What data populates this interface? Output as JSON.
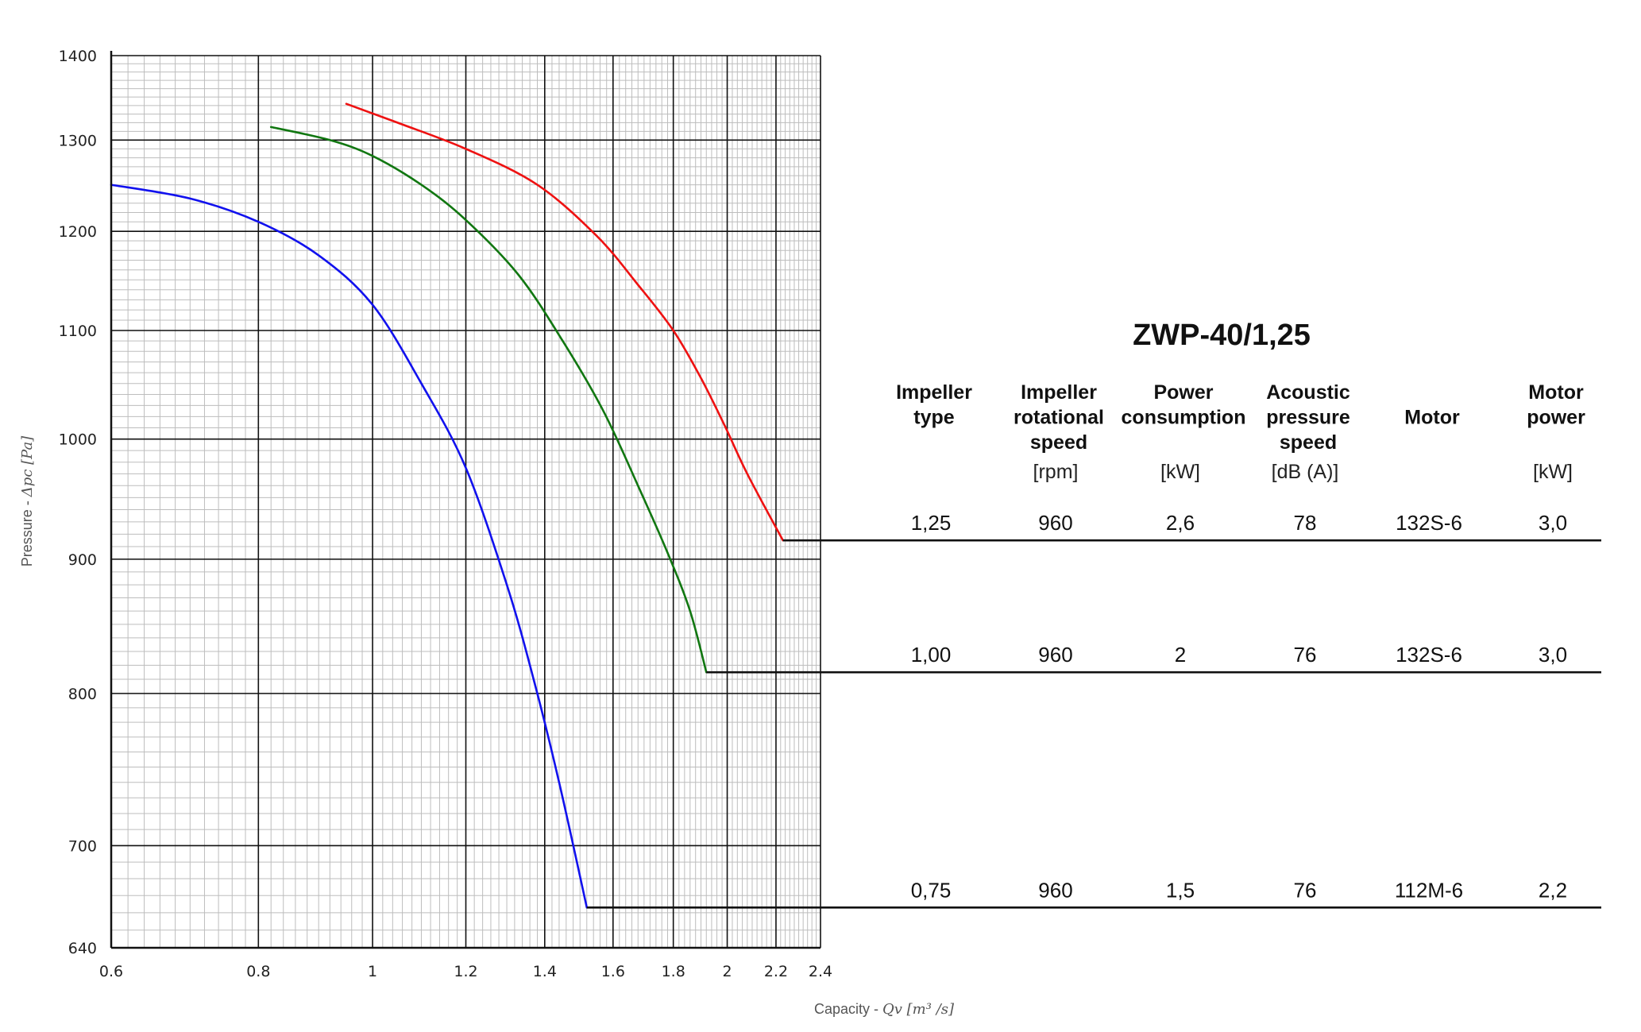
{
  "chart_data": {
    "type": "line",
    "xlabel": "Capacity - ",
    "xlabel_math": "Qv [m³ /s]",
    "ylabel": "Pressure - ",
    "ylabel_math": "Δpc [Pa]",
    "x_scale": "log",
    "y_scale": "log",
    "xlim": [
      0.6,
      2.4
    ],
    "ylim": [
      640,
      1400
    ],
    "grid": true,
    "x_ticks": [
      "0.6",
      "0.8",
      "1",
      "1.2",
      "1.4",
      "1.6",
      "1.8",
      "2",
      "2.2",
      "2.4"
    ],
    "y_ticks": [
      "1400",
      "1300",
      "1200",
      "1100",
      "1000",
      "900",
      "800",
      "700",
      "640"
    ],
    "series": [
      {
        "color": "#ee1111",
        "x": [
          0.95,
          1.05,
          1.2,
          1.38,
          1.55,
          1.68,
          1.8,
          1.9,
          1.99,
          2.08,
          2.23
        ],
        "y": [
          1342,
          1320,
          1290,
          1250,
          1195,
          1145,
          1100,
          1055,
          1012,
          970,
          915
        ]
      },
      {
        "color": "#117711",
        "x": [
          0.82,
          0.92,
          1.0,
          1.1,
          1.2,
          1.33,
          1.45,
          1.57,
          1.68,
          1.78,
          1.86,
          1.92
        ],
        "y": [
          1315,
          1300,
          1282,
          1250,
          1212,
          1155,
          1090,
          1025,
          960,
          905,
          860,
          815
        ]
      },
      {
        "color": "#1111ee",
        "x": [
          0.6,
          0.7,
          0.8,
          0.9,
          1.0,
          1.1,
          1.2,
          1.3,
          1.37,
          1.44,
          1.52
        ],
        "y": [
          1250,
          1235,
          1210,
          1175,
          1125,
          1050,
          975,
          880,
          810,
          740,
          663
        ]
      }
    ]
  },
  "table": {
    "title": "ZWP-40/1,25",
    "headers": [
      [
        "Impeller",
        "type"
      ],
      [
        "Impeller",
        "rotational",
        "speed"
      ],
      [
        "Power",
        "consumption"
      ],
      [
        "Acoustic",
        "pressure",
        "speed"
      ],
      [
        "Motor"
      ],
      [
        "Motor",
        "power"
      ]
    ],
    "units": [
      "",
      "[rpm]",
      "[kW]",
      "[dB (A)]",
      "",
      "[kW]"
    ],
    "rows": [
      {
        "cells": [
          "1,25",
          "960",
          "2,6",
          "78",
          "132S-6",
          "3,0"
        ],
        "series": 0
      },
      {
        "cells": [
          "1,00",
          "960",
          "2",
          "76",
          "132S-6",
          "3,0"
        ],
        "series": 1
      },
      {
        "cells": [
          "0,75",
          "960",
          "1,5",
          "76",
          "112M-6",
          "2,2"
        ],
        "series": 2
      }
    ]
  }
}
